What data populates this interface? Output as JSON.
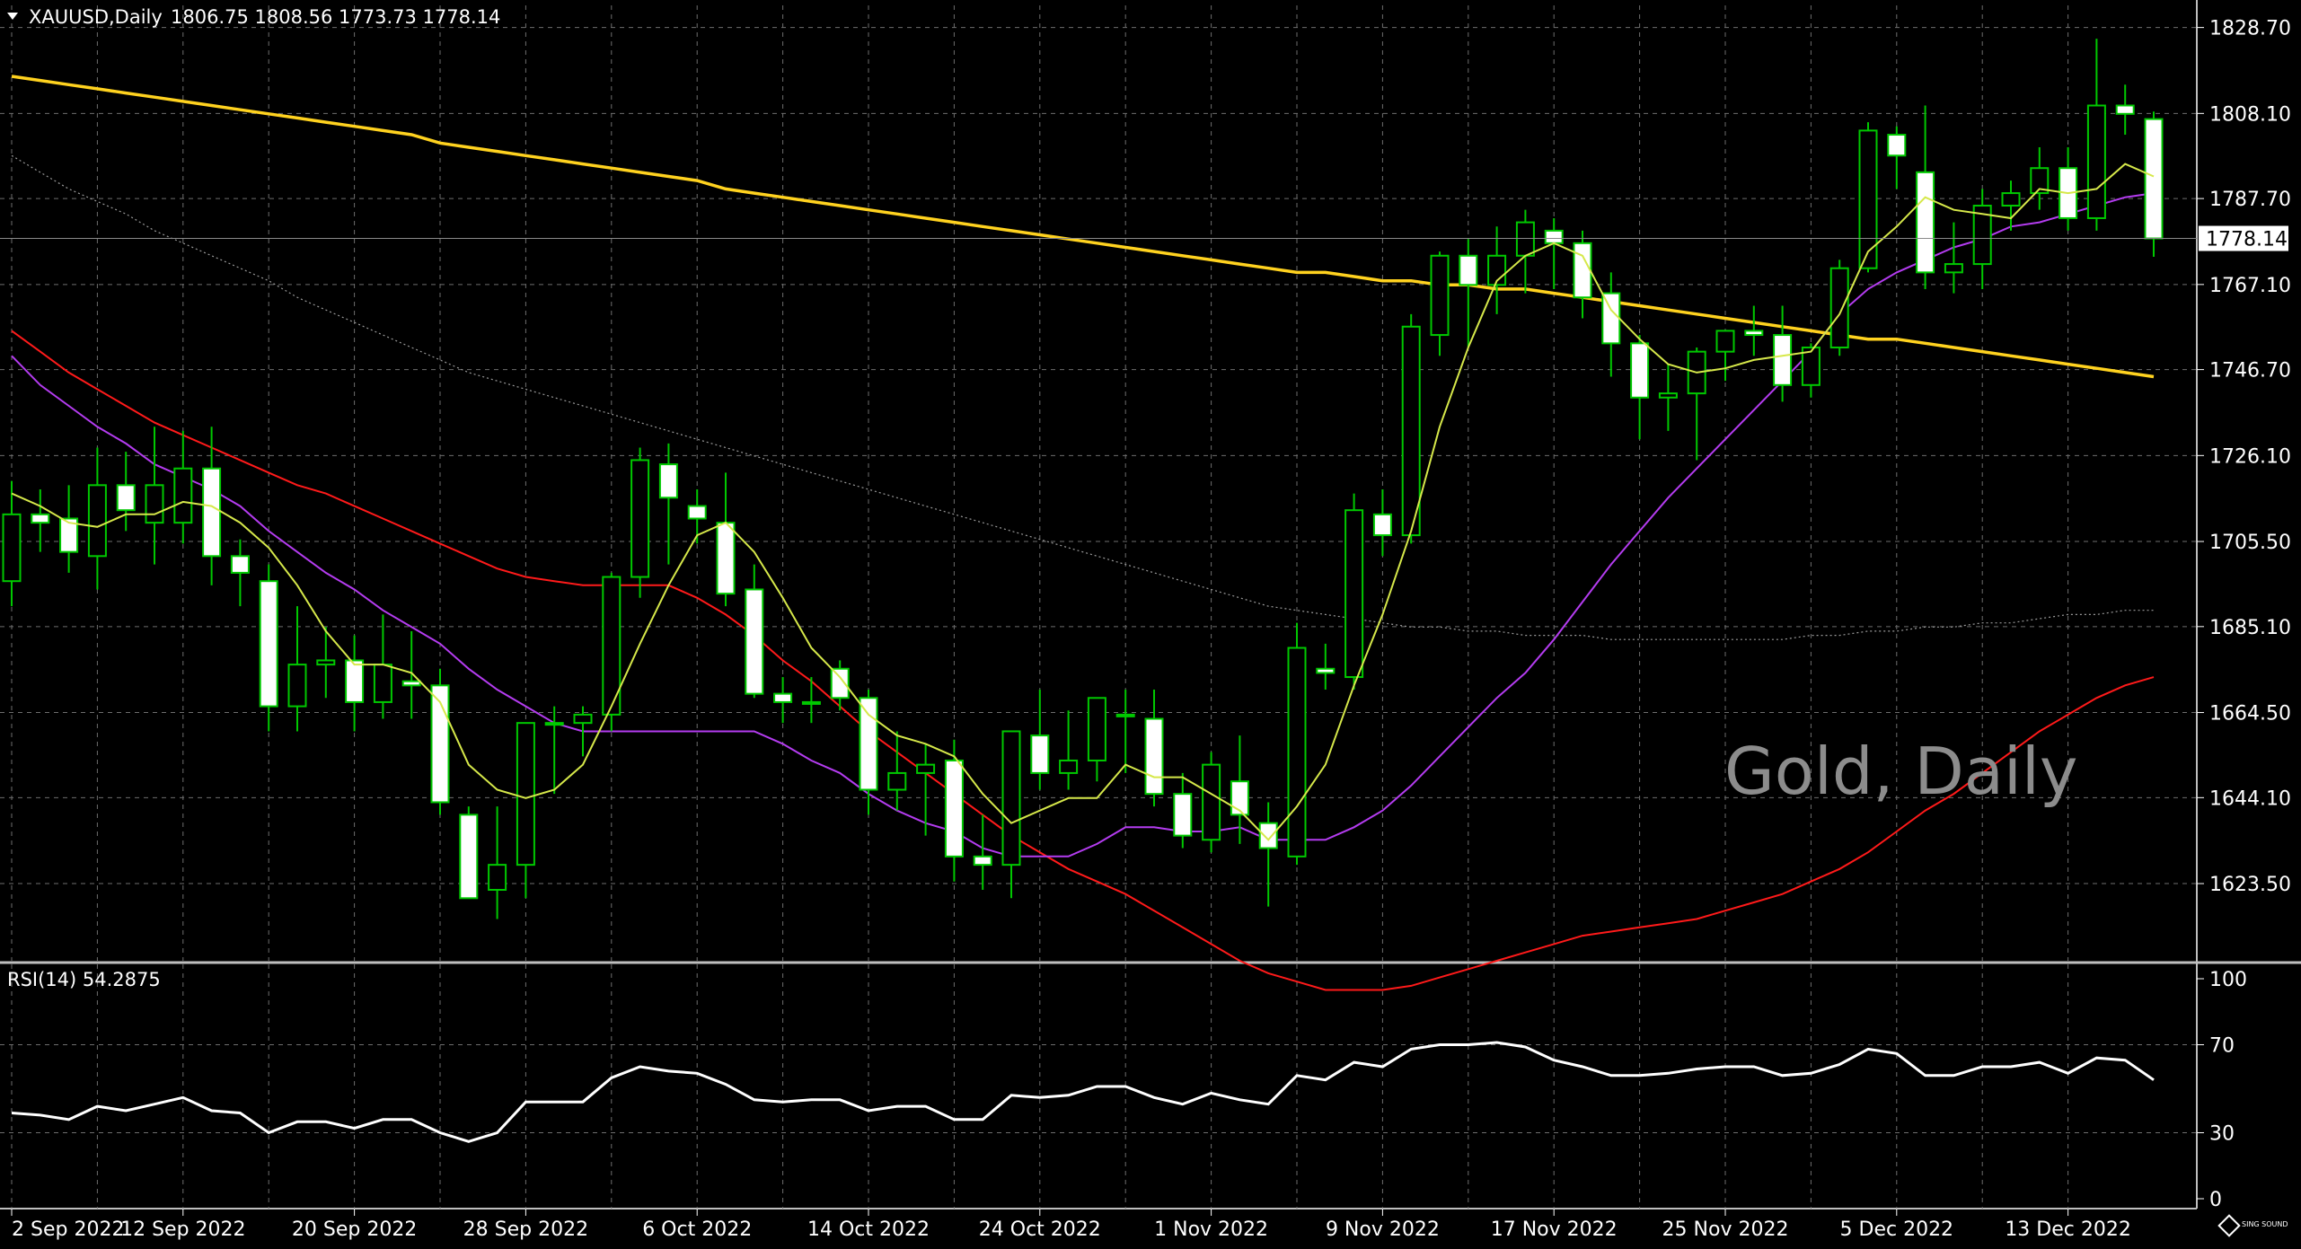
{
  "header": {
    "symbol": "XAUUSD,Daily",
    "ohlc": "1806.75 1808.56 1773.73 1778.14"
  },
  "watermark": "Gold, Daily",
  "logo_text": "SING SOUND",
  "rsi_panel": {
    "label": "RSI(14) 54.2875"
  },
  "colors": {
    "background": "#000000",
    "grid": "#6e6e6e",
    "bull_body": "#000000",
    "bear_body": "#ffffff",
    "candle_outline": "#00c800",
    "ma_fast": "#d6e84a",
    "ma_mid": "#b43cf0",
    "ma_red": "#ff1a1a",
    "ma_gold": "#ffd21f",
    "ma_gray": "#9a9a9a",
    "rsi_line": "#ffffff",
    "price_line": "#8a8a8a"
  },
  "chart_data": [
    {
      "type": "candlestick",
      "title": "XAUUSD,Daily",
      "ylim": [
        1605,
        1834
      ],
      "y_ticks": [
        1828.7,
        1808.1,
        1787.7,
        1767.1,
        1746.7,
        1726.1,
        1705.5,
        1685.1,
        1664.5,
        1644.1,
        1623.5
      ],
      "current_price": 1778.14,
      "x_labels": [
        {
          "index": 0,
          "label": "2 Sep 2022"
        },
        {
          "index": 6,
          "label": "12 Sep 2022"
        },
        {
          "index": 12,
          "label": "20 Sep 2022"
        },
        {
          "index": 18,
          "label": "28 Sep 2022"
        },
        {
          "index": 24,
          "label": "6 Oct 2022"
        },
        {
          "index": 30,
          "label": "14 Oct 2022"
        },
        {
          "index": 36,
          "label": "24 Oct 2022"
        },
        {
          "index": 42,
          "label": "1 Nov 2022"
        },
        {
          "index": 48,
          "label": "9 Nov 2022"
        },
        {
          "index": 54,
          "label": "17 Nov 2022"
        },
        {
          "index": 60,
          "label": "25 Nov 2022"
        },
        {
          "index": 66,
          "label": "5 Dec 2022"
        },
        {
          "index": 72,
          "label": "13 Dec 2022"
        }
      ],
      "candles": [
        {
          "o": 1696,
          "h": 1720,
          "l": 1690,
          "c": 1712
        },
        {
          "o": 1712,
          "h": 1718,
          "l": 1703,
          "c": 1710
        },
        {
          "o": 1711,
          "h": 1719,
          "l": 1698,
          "c": 1703
        },
        {
          "o": 1702,
          "h": 1728,
          "l": 1694,
          "c": 1719
        },
        {
          "o": 1719,
          "h": 1727,
          "l": 1708,
          "c": 1713
        },
        {
          "o": 1710,
          "h": 1733,
          "l": 1700,
          "c": 1719
        },
        {
          "o": 1710,
          "h": 1732,
          "l": 1705,
          "c": 1723
        },
        {
          "o": 1723,
          "h": 1733,
          "l": 1695,
          "c": 1702
        },
        {
          "o": 1702,
          "h": 1706,
          "l": 1690,
          "c": 1698
        },
        {
          "o": 1696,
          "h": 1700,
          "l": 1660,
          "c": 1666
        },
        {
          "o": 1666,
          "h": 1690,
          "l": 1660,
          "c": 1676
        },
        {
          "o": 1676,
          "h": 1685,
          "l": 1668,
          "c": 1677
        },
        {
          "o": 1677,
          "h": 1683,
          "l": 1660,
          "c": 1667
        },
        {
          "o": 1667,
          "h": 1688,
          "l": 1663,
          "c": 1676
        },
        {
          "o": 1672,
          "h": 1684,
          "l": 1663,
          "c": 1671
        },
        {
          "o": 1671,
          "h": 1675,
          "l": 1640,
          "c": 1643
        },
        {
          "o": 1640,
          "h": 1642,
          "l": 1622,
          "c": 1620
        },
        {
          "o": 1622,
          "h": 1642,
          "l": 1615,
          "c": 1628
        },
        {
          "o": 1628,
          "h": 1660,
          "l": 1620,
          "c": 1662
        },
        {
          "o": 1662,
          "h": 1666,
          "l": 1645,
          "c": 1662
        },
        {
          "o": 1662,
          "h": 1666,
          "l": 1654,
          "c": 1664
        },
        {
          "o": 1664,
          "h": 1698,
          "l": 1660,
          "c": 1697
        },
        {
          "o": 1697,
          "h": 1728,
          "l": 1692,
          "c": 1725
        },
        {
          "o": 1724,
          "h": 1729,
          "l": 1700,
          "c": 1716
        },
        {
          "o": 1714,
          "h": 1718,
          "l": 1705,
          "c": 1711
        },
        {
          "o": 1710,
          "h": 1722,
          "l": 1690,
          "c": 1693
        },
        {
          "o": 1694,
          "h": 1700,
          "l": 1668,
          "c": 1669
        },
        {
          "o": 1669,
          "h": 1673,
          "l": 1662,
          "c": 1667
        },
        {
          "o": 1667,
          "h": 1673,
          "l": 1662,
          "c": 1667
        },
        {
          "o": 1675,
          "h": 1677,
          "l": 1665,
          "c": 1668
        },
        {
          "o": 1668,
          "h": 1670,
          "l": 1640,
          "c": 1646
        },
        {
          "o": 1646,
          "h": 1660,
          "l": 1641,
          "c": 1650
        },
        {
          "o": 1650,
          "h": 1657,
          "l": 1635,
          "c": 1652
        },
        {
          "o": 1653,
          "h": 1658,
          "l": 1624,
          "c": 1630
        },
        {
          "o": 1630,
          "h": 1640,
          "l": 1622,
          "c": 1628
        },
        {
          "o": 1628,
          "h": 1660,
          "l": 1620,
          "c": 1660
        },
        {
          "o": 1659,
          "h": 1670,
          "l": 1646,
          "c": 1650
        },
        {
          "o": 1650,
          "h": 1665,
          "l": 1646,
          "c": 1653
        },
        {
          "o": 1653,
          "h": 1668,
          "l": 1648,
          "c": 1668
        },
        {
          "o": 1664,
          "h": 1670,
          "l": 1650,
          "c": 1664
        },
        {
          "o": 1663,
          "h": 1670,
          "l": 1642,
          "c": 1645
        },
        {
          "o": 1645,
          "h": 1650,
          "l": 1632,
          "c": 1635
        },
        {
          "o": 1634,
          "h": 1655,
          "l": 1631,
          "c": 1652
        },
        {
          "o": 1648,
          "h": 1659,
          "l": 1633,
          "c": 1640
        },
        {
          "o": 1638,
          "h": 1643,
          "l": 1618,
          "c": 1632
        },
        {
          "o": 1630,
          "h": 1686,
          "l": 1628,
          "c": 1680
        },
        {
          "o": 1675,
          "h": 1681,
          "l": 1670,
          "c": 1674
        },
        {
          "o": 1673,
          "h": 1717,
          "l": 1670,
          "c": 1713
        },
        {
          "o": 1712,
          "h": 1718,
          "l": 1702,
          "c": 1707
        },
        {
          "o": 1707,
          "h": 1760,
          "l": 1705,
          "c": 1757
        },
        {
          "o": 1755,
          "h": 1775,
          "l": 1750,
          "c": 1774
        },
        {
          "o": 1774,
          "h": 1778,
          "l": 1752,
          "c": 1767
        },
        {
          "o": 1767,
          "h": 1781,
          "l": 1760,
          "c": 1774
        },
        {
          "o": 1774,
          "h": 1785,
          "l": 1765,
          "c": 1782
        },
        {
          "o": 1780,
          "h": 1783,
          "l": 1766,
          "c": 1777
        },
        {
          "o": 1777,
          "h": 1780,
          "l": 1759,
          "c": 1764
        },
        {
          "o": 1765,
          "h": 1770,
          "l": 1745,
          "c": 1753
        },
        {
          "o": 1753,
          "h": 1755,
          "l": 1730,
          "c": 1740
        },
        {
          "o": 1740,
          "h": 1748,
          "l": 1732,
          "c": 1741
        },
        {
          "o": 1741,
          "h": 1752,
          "l": 1725,
          "c": 1751
        },
        {
          "o": 1751,
          "h": 1756,
          "l": 1744,
          "c": 1756
        },
        {
          "o": 1756,
          "h": 1762,
          "l": 1750,
          "c": 1755
        },
        {
          "o": 1755,
          "h": 1762,
          "l": 1739,
          "c": 1743
        },
        {
          "o": 1743,
          "h": 1753,
          "l": 1740,
          "c": 1752
        },
        {
          "o": 1752,
          "h": 1773,
          "l": 1750,
          "c": 1771
        },
        {
          "o": 1771,
          "h": 1806,
          "l": 1770,
          "c": 1804
        },
        {
          "o": 1803,
          "h": 1805,
          "l": 1790,
          "c": 1798
        },
        {
          "o": 1794,
          "h": 1810,
          "l": 1766,
          "c": 1770
        },
        {
          "o": 1770,
          "h": 1782,
          "l": 1765,
          "c": 1772
        },
        {
          "o": 1772,
          "h": 1790,
          "l": 1766,
          "c": 1786
        },
        {
          "o": 1786,
          "h": 1792,
          "l": 1780,
          "c": 1789
        },
        {
          "o": 1789,
          "h": 1800,
          "l": 1785,
          "c": 1795
        },
        {
          "o": 1795,
          "h": 1800,
          "l": 1780,
          "c": 1783
        },
        {
          "o": 1783,
          "h": 1826,
          "l": 1780,
          "c": 1810
        },
        {
          "o": 1810,
          "h": 1815,
          "l": 1803,
          "c": 1808
        },
        {
          "o": 1806.75,
          "h": 1808.56,
          "l": 1773.73,
          "c": 1778.14
        }
      ],
      "ma_fast": [
        1717,
        1714,
        1710,
        1709,
        1712,
        1712,
        1715,
        1714,
        1710,
        1704,
        1695,
        1684,
        1676,
        1676,
        1674,
        1667,
        1652,
        1646,
        1644,
        1646,
        1652,
        1666,
        1681,
        1695,
        1707,
        1710,
        1703,
        1692,
        1680,
        1673,
        1664,
        1659,
        1657,
        1654,
        1645,
        1638,
        1641,
        1644,
        1644,
        1652,
        1649,
        1649,
        1645,
        1641,
        1634,
        1642,
        1652,
        1671,
        1688,
        1708,
        1733,
        1752,
        1768,
        1774,
        1777,
        1774,
        1761,
        1754,
        1748,
        1746,
        1747,
        1749,
        1750,
        1751,
        1760,
        1775,
        1781,
        1788,
        1785,
        1784,
        1783,
        1790,
        1789,
        1790,
        1796,
        1793
      ],
      "ma_mid": [
        1750,
        1743,
        1738,
        1733,
        1729,
        1724,
        1721,
        1718,
        1714,
        1708,
        1703,
        1698,
        1694,
        1689,
        1685,
        1681,
        1675,
        1670,
        1666,
        1662,
        1660,
        1660,
        1660,
        1660,
        1660,
        1660,
        1660,
        1657,
        1653,
        1650,
        1645,
        1641,
        1638,
        1636,
        1632,
        1630,
        1630,
        1630,
        1633,
        1637,
        1637,
        1636,
        1636,
        1637,
        1634,
        1634,
        1634,
        1637,
        1641,
        1647,
        1654,
        1661,
        1668,
        1674,
        1682,
        1691,
        1700,
        1708,
        1716,
        1723,
        1730,
        1737,
        1744,
        1751,
        1760,
        1766,
        1770,
        1773,
        1776,
        1778,
        1781,
        1782,
        1784,
        1786,
        1788,
        1789
      ],
      "ma_red": [
        1756,
        1751,
        1746,
        1742,
        1738,
        1734,
        1731,
        1728,
        1725,
        1722,
        1719,
        1717,
        1714,
        1711,
        1708,
        1705,
        1702,
        1699,
        1697,
        1696,
        1695,
        1695,
        1695,
        1695,
        1692,
        1688,
        1683,
        1677,
        1672,
        1666,
        1660,
        1655,
        1650,
        1645,
        1640,
        1635,
        1631,
        1627,
        1624,
        1621,
        1617,
        1613,
        1609,
        1605,
        1602,
        1600,
        1598,
        1598,
        1598,
        1599,
        1601,
        1603,
        1605,
        1607,
        1609,
        1611,
        1612,
        1613,
        1614,
        1615,
        1617,
        1619,
        1621,
        1624,
        1627,
        1631,
        1636,
        1641,
        1645,
        1650,
        1655,
        1660,
        1664,
        1668,
        1671,
        1673
      ],
      "ma_gold": [
        1817,
        1816,
        1815,
        1814,
        1813,
        1812,
        1811,
        1810,
        1809,
        1808,
        1807,
        1806,
        1805,
        1804,
        1803,
        1801,
        1800,
        1799,
        1798,
        1797,
        1796,
        1795,
        1794,
        1793,
        1792,
        1790,
        1789,
        1788,
        1787,
        1786,
        1785,
        1784,
        1783,
        1782,
        1781,
        1780,
        1779,
        1778,
        1777,
        1776,
        1775,
        1774,
        1773,
        1772,
        1771,
        1770,
        1770,
        1769,
        1768,
        1768,
        1767,
        1767,
        1766,
        1766,
        1765,
        1764,
        1763,
        1762,
        1761,
        1760,
        1759,
        1758,
        1757,
        1756,
        1755,
        1754,
        1754,
        1753,
        1752,
        1751,
        1750,
        1749,
        1748,
        1747,
        1746,
        1745
      ],
      "ma_gray": [
        1798,
        1794,
        1790,
        1787,
        1784,
        1780,
        1777,
        1774,
        1771,
        1768,
        1764,
        1761,
        1758,
        1755,
        1752,
        1749,
        1746,
        1744,
        1742,
        1740,
        1738,
        1736,
        1734,
        1732,
        1730,
        1728,
        1726,
        1724,
        1722,
        1720,
        1718,
        1716,
        1714,
        1712,
        1710,
        1708,
        1706,
        1704,
        1702,
        1700,
        1698,
        1696,
        1694,
        1692,
        1690,
        1689,
        1688,
        1687,
        1686,
        1685,
        1685,
        1684,
        1684,
        1683,
        1683,
        1683,
        1682,
        1682,
        1682,
        1682,
        1682,
        1682,
        1682,
        1683,
        1683,
        1684,
        1684,
        1685,
        1685,
        1686,
        1686,
        1687,
        1688,
        1688,
        1689,
        1689
      ]
    },
    {
      "type": "line",
      "title": "RSI(14) 54.2875",
      "ylim": [
        0,
        100
      ],
      "y_ticks": [
        100,
        70,
        30,
        0
      ],
      "values": [
        39,
        38,
        36,
        42,
        40,
        43,
        46,
        40,
        39,
        30,
        35,
        35,
        32,
        36,
        36,
        30,
        26,
        30,
        44,
        44,
        44,
        55,
        60,
        58,
        57,
        52,
        45,
        44,
        45,
        45,
        40,
        42,
        42,
        36,
        36,
        47,
        46,
        47,
        51,
        51,
        46,
        43,
        48,
        45,
        43,
        56,
        54,
        62,
        60,
        68,
        70,
        70,
        71,
        69,
        63,
        60,
        56,
        56,
        57,
        59,
        60,
        60,
        56,
        57,
        61,
        68,
        66,
        56,
        56,
        60,
        60,
        62,
        57,
        64,
        63,
        54
      ]
    }
  ]
}
